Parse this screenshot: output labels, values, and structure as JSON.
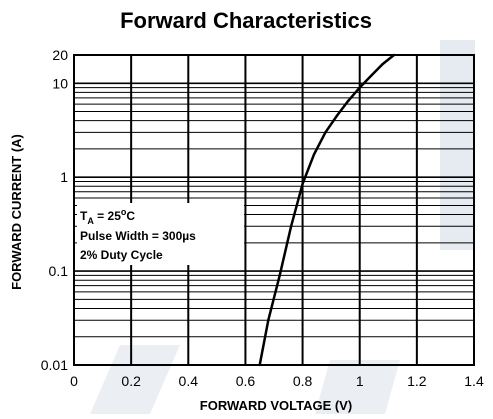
{
  "chart_data": {
    "type": "line",
    "title": "Forward Characteristics",
    "xlabel": "FORWARD VOLTAGE (V)",
    "ylabel": "FORWARD CURRENT (A)",
    "xlim": [
      0,
      1.4
    ],
    "ylim": [
      0.01,
      20
    ],
    "yscale": "log",
    "grid": true,
    "x_ticks": [
      0,
      0.2,
      0.4,
      0.6,
      0.8,
      1.0,
      1.2,
      1.4
    ],
    "x_tick_labels": [
      "0",
      "0.2",
      "0.4",
      "0.6",
      "0.8",
      "1",
      "1.2",
      "1.4"
    ],
    "y_ticks": [
      0.01,
      0.1,
      1,
      10,
      20
    ],
    "y_tick_labels": [
      "0.01",
      "0.1",
      "1",
      "10",
      "20"
    ],
    "series": [
      {
        "x": [
          0.65,
          0.68,
          0.72,
          0.76,
          0.8,
          0.84,
          0.88,
          0.92,
          0.96,
          1.0,
          1.04,
          1.08,
          1.12
        ],
        "y": [
          0.01,
          0.03,
          0.09,
          0.3,
          0.85,
          1.75,
          3.0,
          4.5,
          6.5,
          9.0,
          12.0,
          16.0,
          20.0
        ]
      }
    ],
    "annotations": [
      {
        "id": "temp",
        "parts": [
          "T",
          "A",
          " = 25",
          "o",
          "C"
        ]
      },
      {
        "id": "pulse",
        "text": "Pulse Width = 300µs"
      },
      {
        "id": "duty",
        "text": "2% Duty Cycle"
      }
    ]
  },
  "colors": {
    "background": "#ffffff",
    "grid": "#000000",
    "line": "#000000",
    "text": "#000000",
    "watermark": "#d2dae5"
  }
}
